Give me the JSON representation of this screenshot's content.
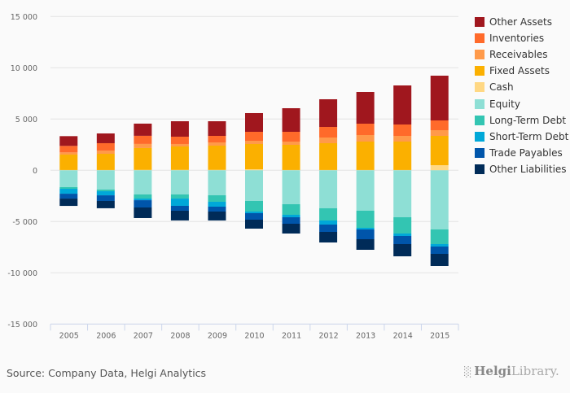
{
  "chart_data": {
    "type": "bar",
    "stacked": true,
    "title": "",
    "xlabel": "",
    "ylabel": "",
    "ylim": [
      -15000,
      15000
    ],
    "yticks": [
      15000,
      10000,
      5000,
      0,
      -5000,
      -10000,
      -15000
    ],
    "ytick_labels": [
      "15 000",
      "10 000",
      "5 000",
      "0",
      "-5 000",
      "-10 000",
      "-15 000"
    ],
    "grid": true,
    "legend_position": "right",
    "categories": [
      "2005",
      "2006",
      "2007",
      "2008",
      "2009",
      "2010",
      "2011",
      "2012",
      "2013",
      "2014",
      "2015"
    ],
    "series": [
      {
        "name": "Other Assets",
        "color": "#a0171e",
        "values": [
          952,
          952,
          1190,
          1508,
          1429,
          1826,
          2302,
          2699,
          3095,
          3810,
          4365
        ]
      },
      {
        "name": "Inventories",
        "color": "#ff6a2a",
        "values": [
          635,
          714,
          794,
          714,
          635,
          873,
          952,
          1032,
          1111,
          1111,
          952
        ]
      },
      {
        "name": "Receivables",
        "color": "#ff9a4a",
        "values": [
          214,
          320,
          400,
          240,
          317,
          318,
          318,
          555,
          635,
          555,
          556
        ]
      },
      {
        "name": "Fixed Assets",
        "color": "#fbb000",
        "values": [
          1500,
          1580,
          2130,
          2285,
          2365,
          2463,
          2454,
          2613,
          2772,
          2772,
          2857
        ]
      },
      {
        "name": "Cash",
        "color": "#ffd884",
        "values": [
          30,
          30,
          40,
          40,
          40,
          100,
          30,
          30,
          30,
          30,
          500
        ]
      },
      {
        "name": "Equity",
        "color": "#8edfd5",
        "values": [
          -1643,
          -1881,
          -2357,
          -2357,
          -2437,
          -2992,
          -3310,
          -3706,
          -3944,
          -4580,
          -5770
        ]
      },
      {
        "name": "Long-Term Debt",
        "color": "#33c5b2",
        "values": [
          -160,
          -160,
          -400,
          -400,
          -635,
          -1032,
          -1031,
          -1191,
          -1667,
          -1587,
          -1428
        ]
      },
      {
        "name": "Short-Term Debt",
        "color": "#00a8d8",
        "values": [
          -480,
          -400,
          -160,
          -710,
          -476,
          -159,
          -239,
          -397,
          -159,
          -238,
          -239
        ]
      },
      {
        "name": "Trade Payables",
        "color": "#0055aa",
        "values": [
          -476,
          -550,
          -710,
          -476,
          -476,
          -634,
          -634,
          -714,
          -952,
          -793,
          -714
        ]
      },
      {
        "name": "Other Liabilities",
        "color": "#002b58",
        "values": [
          -714,
          -710,
          -1030,
          -950,
          -870,
          -873,
          -953,
          -1032,
          -1032,
          -1191,
          -1190
        ]
      }
    ]
  },
  "footer": {
    "source": "Source: Company Data, Helgi Analytics",
    "logo_bold": "Helgi",
    "logo_light": "Library.",
    "logo_icon": "library-logo-icon"
  }
}
